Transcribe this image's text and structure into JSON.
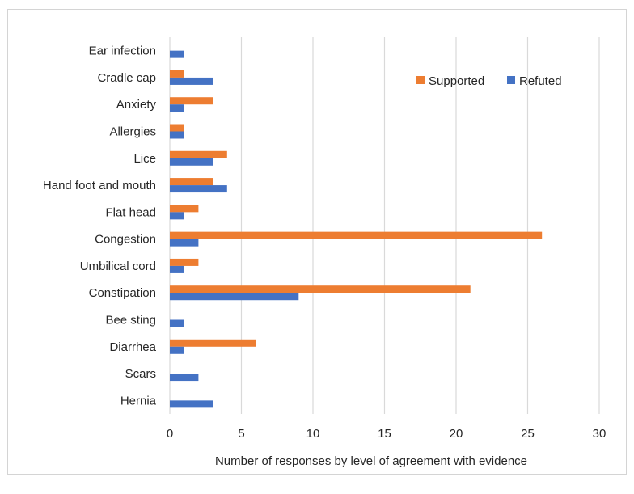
{
  "chart_data": {
    "type": "bar",
    "orientation": "horizontal",
    "categories": [
      "Ear infection",
      "Cradle cap",
      "Anxiety",
      "Allergies",
      "Lice",
      "Hand foot and mouth",
      "Flat head",
      "Congestion",
      "Umbilical cord",
      "Constipation",
      "Bee sting",
      "Diarrhea",
      "Scars",
      "Hernia"
    ],
    "series": [
      {
        "name": "Supported",
        "color": "#ED7D31",
        "values": [
          0,
          1,
          3,
          1,
          4,
          3,
          2,
          26,
          2,
          21,
          0,
          6,
          0,
          0
        ]
      },
      {
        "name": "Refuted",
        "color": "#4472C4",
        "values": [
          1,
          3,
          1,
          1,
          3,
          4,
          1,
          2,
          1,
          9,
          1,
          1,
          2,
          3
        ]
      }
    ],
    "xlabel": "Number of responses by level of agreement with evidence",
    "ylabel": "",
    "xlim": [
      0,
      30
    ],
    "xticks": [
      0,
      5,
      10,
      15,
      20,
      25,
      30
    ],
    "grid": true,
    "legend_position": "top-right"
  }
}
